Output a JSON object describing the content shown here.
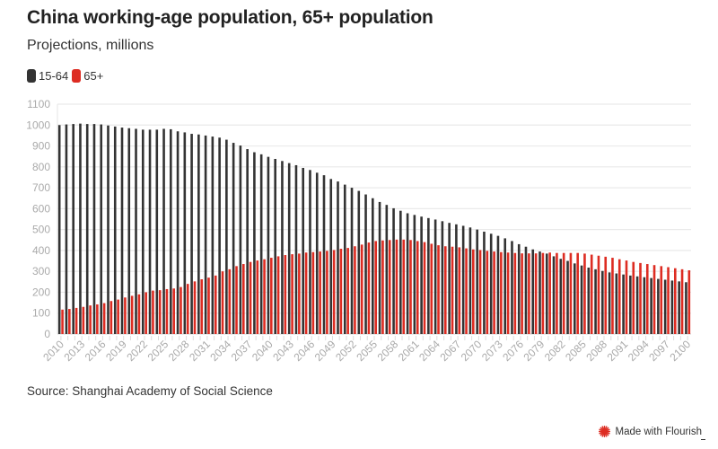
{
  "header": {
    "title": "China working-age population, 65+ population",
    "subtitle": "Projections, millions"
  },
  "legend": [
    {
      "label": "15-64",
      "color": "#333333"
    },
    {
      "label": "65+",
      "color": "#dd2c22"
    }
  ],
  "footer": {
    "source": "Source: Shanghai Academy of Social Science",
    "branding": "Made with Flourish"
  },
  "chart_data": {
    "type": "bar",
    "title": "China working-age population, 65+ population",
    "subtitle": "Projections, millions",
    "xlabel": "",
    "ylabel": "",
    "ylim": [
      0,
      1100
    ],
    "yticks": [
      0,
      100,
      200,
      300,
      400,
      500,
      600,
      700,
      800,
      900,
      1000,
      1100
    ],
    "grid": true,
    "legend_position": "top-left",
    "x_tick_labels": [
      "2010",
      "2013",
      "2016",
      "2019",
      "2022",
      "2025",
      "2028",
      "2031",
      "2034",
      "2037",
      "2040",
      "2043",
      "2046",
      "2049",
      "2052",
      "2055",
      "2058",
      "2061",
      "2064",
      "2067",
      "2070",
      "2073",
      "2076",
      "2079",
      "2082",
      "2085",
      "2088",
      "2091",
      "2094",
      "2097",
      "2100"
    ],
    "categories": [
      "2010",
      "2011",
      "2012",
      "2013",
      "2014",
      "2015",
      "2016",
      "2017",
      "2018",
      "2019",
      "2020",
      "2021",
      "2022",
      "2023",
      "2024",
      "2025",
      "2026",
      "2027",
      "2028",
      "2029",
      "2030",
      "2031",
      "2032",
      "2033",
      "2034",
      "2035",
      "2036",
      "2037",
      "2038",
      "2039",
      "2040",
      "2041",
      "2042",
      "2043",
      "2044",
      "2045",
      "2046",
      "2047",
      "2048",
      "2049",
      "2050",
      "2051",
      "2052",
      "2053",
      "2054",
      "2055",
      "2056",
      "2057",
      "2058",
      "2059",
      "2060",
      "2061",
      "2062",
      "2063",
      "2064",
      "2065",
      "2066",
      "2067",
      "2068",
      "2069",
      "2070",
      "2071",
      "2072",
      "2073",
      "2074",
      "2075",
      "2076",
      "2077",
      "2078",
      "2079",
      "2080",
      "2081",
      "2082",
      "2083",
      "2084",
      "2085",
      "2086",
      "2087",
      "2088",
      "2089",
      "2090",
      "2091",
      "2092",
      "2093",
      "2094",
      "2095",
      "2096",
      "2097",
      "2098",
      "2099",
      "2100"
    ],
    "series": [
      {
        "name": "15-64",
        "color": "#333333",
        "values": [
          1000,
          1003,
          1005,
          1007,
          1005,
          1005,
          1003,
          998,
          993,
          988,
          985,
          982,
          978,
          978,
          978,
          982,
          980,
          970,
          965,
          958,
          955,
          950,
          945,
          940,
          930,
          915,
          902,
          885,
          870,
          860,
          848,
          838,
          828,
          818,
          808,
          795,
          785,
          772,
          760,
          742,
          730,
          715,
          700,
          685,
          668,
          650,
          632,
          618,
          602,
          590,
          578,
          570,
          562,
          555,
          548,
          540,
          532,
          525,
          518,
          510,
          500,
          490,
          480,
          470,
          458,
          445,
          430,
          418,
          405,
          395,
          385,
          372,
          360,
          350,
          338,
          328,
          318,
          310,
          302,
          295,
          290,
          285,
          280,
          276,
          272,
          268,
          264,
          260,
          256,
          252,
          248
        ]
      },
      {
        "name": "65+",
        "color": "#dd2c22",
        "values": [
          117,
          120,
          125,
          130,
          137,
          142,
          148,
          158,
          165,
          175,
          183,
          190,
          200,
          208,
          210,
          215,
          218,
          225,
          240,
          252,
          262,
          270,
          280,
          300,
          310,
          325,
          335,
          345,
          352,
          358,
          365,
          372,
          378,
          382,
          385,
          390,
          392,
          395,
          398,
          402,
          408,
          412,
          420,
          428,
          438,
          445,
          448,
          450,
          452,
          452,
          450,
          445,
          440,
          432,
          425,
          420,
          418,
          415,
          410,
          405,
          402,
          398,
          395,
          392,
          390,
          388,
          386,
          386,
          386,
          388,
          390,
          388,
          388,
          388,
          388,
          385,
          380,
          375,
          370,
          365,
          358,
          352,
          345,
          340,
          335,
          330,
          325,
          320,
          315,
          310,
          305
        ]
      }
    ]
  }
}
